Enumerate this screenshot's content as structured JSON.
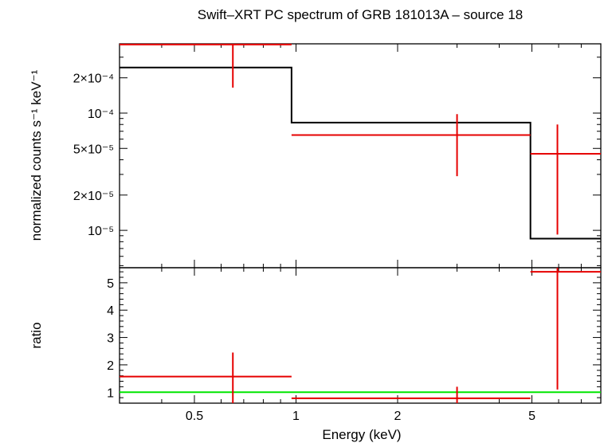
{
  "chart_data": [
    {
      "type": "line",
      "panel": "spectrum",
      "title": "Swift–XRT PC spectrum of GRB 181013A – source 18",
      "xlabel": "",
      "ylabel": "normalized counts s⁻¹ keV⁻¹",
      "x_scale": "log",
      "y_scale": "log",
      "xlim": [
        0.3,
        8.0
      ],
      "ylim": [
        4.8e-06,
        0.00039
      ],
      "x_ticks": [
        {
          "value": 0.5,
          "label": ""
        },
        {
          "value": 1,
          "label": ""
        },
        {
          "value": 2,
          "label": ""
        },
        {
          "value": 5,
          "label": ""
        }
      ],
      "y_ticks": [
        {
          "value": 0.0002,
          "label": "2×10⁻⁴"
        },
        {
          "value": 0.0001,
          "label": "10⁻⁴"
        },
        {
          "value": 5e-05,
          "label": "5×10⁻⁵"
        },
        {
          "value": 2e-05,
          "label": "2×10⁻⁵"
        },
        {
          "value": 1e-05,
          "label": "10⁻⁵"
        }
      ],
      "grid": false,
      "series": [
        {
          "kind": "model-step",
          "color": "#000000",
          "bins": [
            {
              "x_lo": 0.3,
              "x_hi": 0.97,
              "y": 0.000245
            },
            {
              "x_lo": 0.97,
              "x_hi": 4.95,
              "y": 8.3e-05
            },
            {
              "x_lo": 4.95,
              "x_hi": 8.0,
              "y": 8.5e-06
            }
          ]
        },
        {
          "kind": "data-crosses",
          "color": "#e60000",
          "points": [
            {
              "x": 0.65,
              "x_lo": 0.3,
              "x_hi": 0.97,
              "y": 0.000385,
              "y_lo": 0.000165,
              "y_hi": 0.00039
            },
            {
              "x": 3.0,
              "x_lo": 0.97,
              "x_hi": 4.95,
              "y": 6.5e-05,
              "y_lo": 2.9e-05,
              "y_hi": 9.8e-05
            },
            {
              "x": 5.95,
              "x_lo": 4.95,
              "x_hi": 8.0,
              "y": 4.5e-05,
              "y_lo": 9.2e-06,
              "y_hi": 8e-05
            }
          ]
        }
      ]
    },
    {
      "type": "line",
      "panel": "ratio",
      "title": "",
      "xlabel": "Energy (keV)",
      "ylabel": "ratio",
      "x_scale": "log",
      "y_scale": "linear",
      "xlim": [
        0.3,
        8.0
      ],
      "ylim": [
        0.6,
        5.55
      ],
      "x_ticks": [
        {
          "value": 0.5,
          "label": "0.5"
        },
        {
          "value": 1,
          "label": "1"
        },
        {
          "value": 2,
          "label": "2"
        },
        {
          "value": 5,
          "label": "5"
        }
      ],
      "y_ticks": [
        {
          "value": 1,
          "label": "1"
        },
        {
          "value": 2,
          "label": "2"
        },
        {
          "value": 3,
          "label": "3"
        },
        {
          "value": 4,
          "label": "4"
        },
        {
          "value": 5,
          "label": "5"
        }
      ],
      "grid": false,
      "series": [
        {
          "kind": "reference-line",
          "color": "#00e600",
          "y": 1.0
        },
        {
          "kind": "data-crosses",
          "color": "#e60000",
          "points": [
            {
              "x": 0.65,
              "x_lo": 0.3,
              "x_hi": 0.97,
              "y": 1.57,
              "y_lo": 0.6,
              "y_hi": 2.45
            },
            {
              "x": 3.0,
              "x_lo": 0.97,
              "x_hi": 4.95,
              "y": 0.78,
              "y_lo": 0.6,
              "y_hi": 1.2
            },
            {
              "x": 5.95,
              "x_lo": 4.95,
              "x_hi": 8.0,
              "y": 5.4,
              "y_lo": 1.1,
              "y_hi": 5.55
            }
          ]
        }
      ]
    }
  ]
}
